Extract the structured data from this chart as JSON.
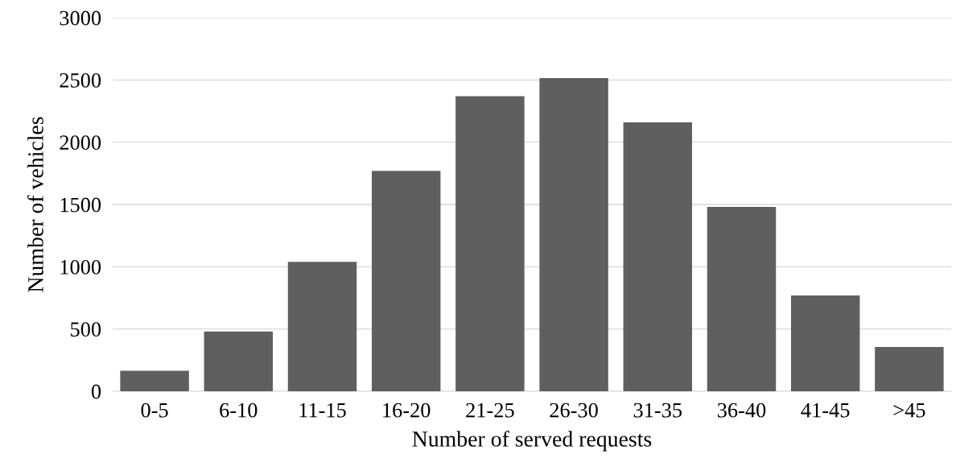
{
  "chart_data": {
    "type": "bar",
    "xlabel": "Number of served requests",
    "ylabel": "Number of vehicles",
    "categories": [
      "0-5",
      "6-10",
      "11-15",
      "16-20",
      "21-25",
      "26-30",
      "31-35",
      "36-40",
      "41-45",
      ">45"
    ],
    "values": [
      165,
      480,
      1040,
      1770,
      2370,
      2515,
      2160,
      1480,
      770,
      355
    ],
    "color": "#5f5f5f",
    "ylim": [
      0,
      3000
    ],
    "yticks": [
      0,
      500,
      1000,
      1500,
      2000,
      2500,
      3000
    ],
    "grid": "y"
  }
}
